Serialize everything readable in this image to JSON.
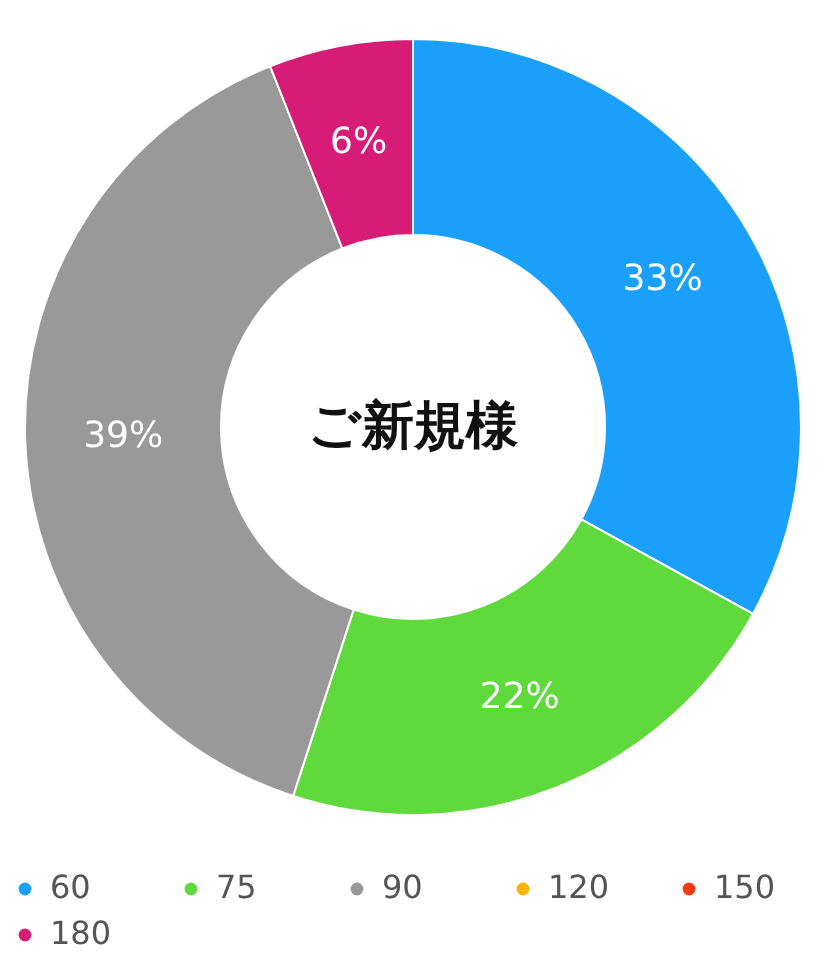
{
  "chart_data": {
    "type": "donut",
    "title": "ご新規様",
    "categories": [
      "60",
      "75",
      "90",
      "120",
      "150",
      "180"
    ],
    "values": [
      33,
      22,
      39,
      0,
      0,
      6
    ],
    "colors": [
      "#1a9ffb",
      "#5fd93b",
      "#999999",
      "#f7b500",
      "#f53a10",
      "#d61c77"
    ],
    "value_labels": [
      "33%",
      "22%",
      "39%",
      null,
      null,
      "6%"
    ],
    "legend": "bottom"
  }
}
